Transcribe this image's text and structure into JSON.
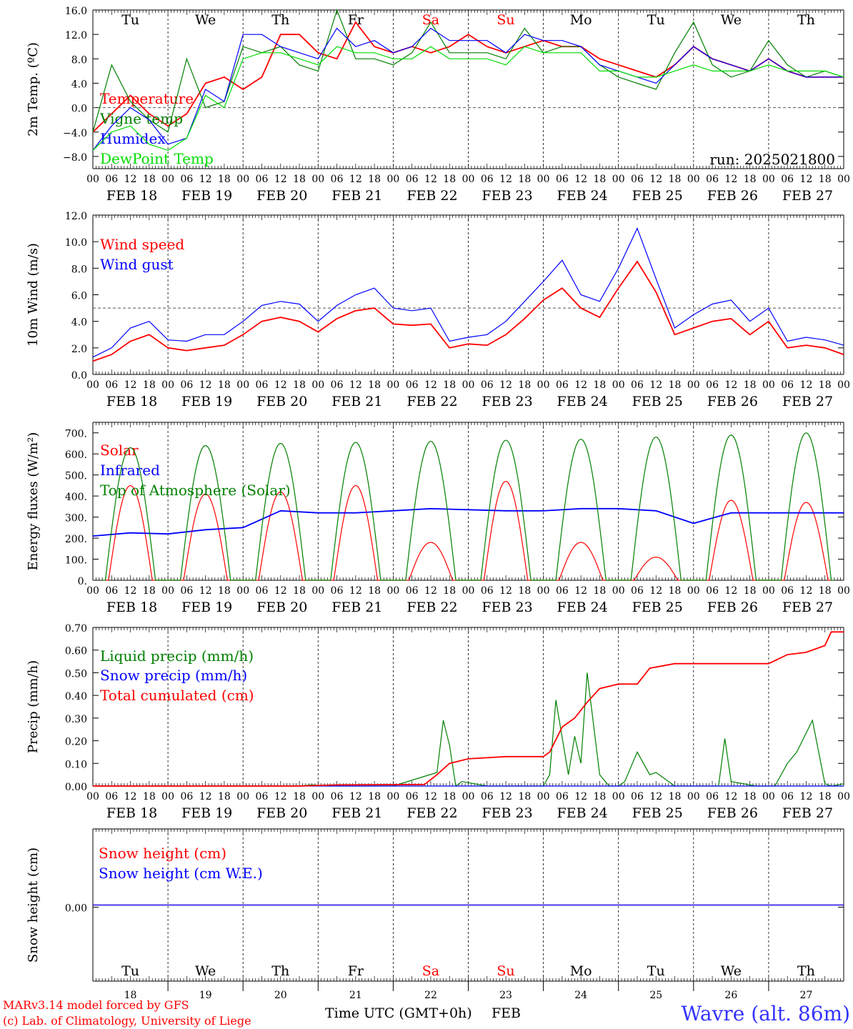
{
  "footer": {
    "model_line": "MARv3.14 model forced by GFS",
    "copyright_line": "(c) Lab. of Climatology, University of Liege",
    "xlabel": "Time UTC (GMT+0h)",
    "month": "FEB",
    "place": "Wavre (alt. 86m)"
  },
  "days": {
    "abbr": [
      "Tu",
      "We",
      "Th",
      "Fr",
      "Sa",
      "Su",
      "Mo",
      "Tu",
      "We",
      "Th"
    ],
    "dates": [
      "FEB 18",
      "FEB 19",
      "FEB 20",
      "FEB 21",
      "FEB 22",
      "FEB 23",
      "FEB 24",
      "FEB 25",
      "FEB 26",
      "FEB 27"
    ],
    "day_numbers": [
      "18",
      "19",
      "20",
      "21",
      "22",
      "23",
      "24",
      "25",
      "26",
      "27"
    ],
    "weekend_color": "#ff0000",
    "hour_ticks": [
      "00",
      "06",
      "12",
      "18"
    ],
    "final_tick": "00"
  },
  "chart_data": [
    {
      "type": "line",
      "ylabel": "2m Temp. (ºC)",
      "ylim": [
        -10,
        16
      ],
      "yticks": [
        "16.0",
        "12.0",
        "8.0",
        "4.0",
        "0.0",
        "−4.0",
        "−8.0"
      ],
      "ytick_values": [
        16,
        12,
        8,
        4,
        0,
        -4,
        -8
      ],
      "reference_line": 0,
      "annotation": "run: 2025021800",
      "x_unit": "hours since FEB 18 00 UTC",
      "x": [
        0,
        6,
        12,
        18,
        24,
        30,
        36,
        42,
        48,
        54,
        60,
        66,
        72,
        78,
        84,
        90,
        96,
        102,
        108,
        114,
        120,
        126,
        132,
        138,
        144,
        150,
        156,
        162,
        168,
        174,
        180,
        186,
        192,
        198,
        204,
        210,
        216,
        222,
        228,
        234,
        240
      ],
      "series": [
        {
          "name": "Temperature",
          "color": "#ff0000",
          "values": [
            -4,
            -1,
            2,
            -1,
            -3,
            -1,
            4,
            5,
            3,
            5,
            12,
            12,
            9,
            8,
            14,
            10,
            9,
            10,
            9,
            10,
            12,
            10,
            9,
            10,
            11,
            10,
            10,
            8,
            7,
            6,
            5,
            7,
            10,
            8,
            7,
            6,
            8,
            6,
            5,
            5,
            5
          ]
        },
        {
          "name": "Vigne temp",
          "color": "#008000",
          "values": [
            -4,
            7,
            1,
            -2,
            -4,
            8,
            0,
            1,
            10,
            9,
            10,
            7,
            6,
            16,
            8,
            8,
            7,
            9,
            14,
            9,
            9,
            9,
            8,
            13,
            9,
            10,
            10,
            7,
            5,
            4,
            3,
            9,
            14,
            7,
            5,
            6,
            11,
            7,
            5,
            6,
            5
          ]
        },
        {
          "name": "Humidex",
          "color": "#0000ff",
          "values": [
            -7,
            -3,
            0,
            -2,
            -6,
            -5,
            3,
            1,
            12,
            12,
            10,
            9,
            8,
            13,
            10,
            11,
            9,
            10,
            13,
            11,
            11,
            11,
            9,
            12,
            11,
            11,
            10,
            7,
            6,
            5,
            4,
            7,
            10,
            8,
            7,
            6,
            8,
            6,
            5,
            5,
            5
          ]
        },
        {
          "name": "DewPoint Temp",
          "color": "#00dd00",
          "values": [
            -7,
            -4,
            -3,
            -6,
            -7,
            -5,
            2,
            0,
            8,
            9,
            9,
            8,
            7,
            10,
            9,
            9,
            8,
            8,
            10,
            8,
            8,
            8,
            7,
            10,
            9,
            9,
            9,
            6,
            6,
            5,
            5,
            6,
            7,
            6,
            6,
            6,
            7,
            6,
            6,
            6,
            5
          ]
        }
      ]
    },
    {
      "type": "line",
      "ylabel": "10m Wind (m/s)",
      "ylim": [
        0,
        12
      ],
      "yticks": [
        "12.0",
        "10.0",
        "8.0",
        "6.0",
        "4.0",
        "2.0",
        "0.0"
      ],
      "ytick_values": [
        12,
        10,
        8,
        6,
        4,
        2,
        0
      ],
      "reference_line": 5,
      "x_unit": "hours since FEB 18 00 UTC",
      "x": [
        0,
        6,
        12,
        18,
        24,
        30,
        36,
        42,
        48,
        54,
        60,
        66,
        72,
        78,
        84,
        90,
        96,
        102,
        108,
        114,
        120,
        126,
        132,
        138,
        144,
        150,
        156,
        162,
        168,
        174,
        180,
        186,
        192,
        198,
        204,
        210,
        216,
        222,
        228,
        234,
        240
      ],
      "series": [
        {
          "name": "Wind speed",
          "color": "#ff0000",
          "values": [
            1,
            1.5,
            2.5,
            3,
            2,
            1.8,
            2,
            2.2,
            3,
            4,
            4.3,
            4,
            3.2,
            4.2,
            4.8,
            5,
            3.8,
            3.7,
            3.8,
            2,
            2.3,
            2.2,
            3,
            4.2,
            5.6,
            6.5,
            5,
            4.3,
            6.5,
            8.5,
            6.2,
            3,
            3.5,
            4,
            4.2,
            3,
            4,
            2,
            2.2,
            2,
            1.5
          ]
        },
        {
          "name": "Wind gust",
          "color": "#0000ff",
          "values": [
            1.3,
            2,
            3.5,
            4,
            2.6,
            2.5,
            3,
            3,
            4,
            5.2,
            5.5,
            5.3,
            4,
            5.2,
            6,
            6.5,
            5,
            4.8,
            5,
            2.5,
            2.8,
            3,
            4,
            5.5,
            7,
            8.6,
            6,
            5.5,
            8,
            11,
            7.2,
            3.5,
            4.5,
            5.3,
            5.6,
            4,
            5,
            2.5,
            2.8,
            2.6,
            2.2
          ]
        }
      ]
    },
    {
      "type": "line",
      "ylabel": "Energy fluxes (W/m²)",
      "ylim": [
        0,
        750
      ],
      "yticks": [
        "700.",
        "600.",
        "500.",
        "400.",
        "300.",
        "200.",
        "100.",
        "0."
      ],
      "ytick_values": [
        700,
        600,
        500,
        400,
        300,
        200,
        100,
        0
      ],
      "x_unit": "hours since FEB 18 00 UTC",
      "series": [
        {
          "name": "Solar",
          "color": "#ff0000",
          "peaks": [
            450,
            410,
            420,
            450,
            180,
            470,
            180,
            110,
            380,
            370
          ]
        },
        {
          "name": "Infrared",
          "color": "#0000ff",
          "x": [
            0,
            12,
            24,
            36,
            48,
            60,
            72,
            84,
            96,
            108,
            120,
            132,
            144,
            156,
            168,
            180,
            192,
            204,
            216,
            228,
            240
          ],
          "values": [
            210,
            225,
            220,
            240,
            250,
            330,
            320,
            320,
            330,
            340,
            335,
            330,
            330,
            340,
            340,
            330,
            270,
            320,
            320,
            320,
            320
          ]
        },
        {
          "name": "Top of Atmosphere (Solar)",
          "color": "#008000",
          "peaks": [
            630,
            640,
            650,
            655,
            660,
            665,
            670,
            680,
            690,
            700
          ]
        }
      ]
    },
    {
      "type": "line",
      "ylabel": "Precip (mm/h)",
      "ylim": [
        0,
        0.7
      ],
      "yticks": [
        "0.70",
        "0.60",
        "0.50",
        "0.40",
        "0.30",
        "0.20",
        "0.10",
        "0.00"
      ],
      "ytick_values": [
        0.7,
        0.6,
        0.5,
        0.4,
        0.3,
        0.2,
        0.1,
        0
      ],
      "x_unit": "hours since FEB 18 00 UTC",
      "series": [
        {
          "name": "Liquid precip (mm/h)",
          "color": "#008000",
          "x": [
            0,
            66,
            70,
            75,
            78,
            82,
            84,
            96,
            110,
            112,
            114,
            116,
            118,
            126,
            144,
            146,
            148,
            152,
            154,
            156,
            158,
            162,
            165,
            168,
            170,
            174,
            176,
            178,
            180,
            186,
            200,
            202,
            204,
            212,
            218,
            222,
            225,
            230,
            234,
            236,
            240
          ],
          "values": [
            0,
            0,
            0.005,
            0,
            0,
            0,
            0,
            0,
            0.06,
            0.29,
            0.18,
            0,
            0.02,
            0,
            0,
            0.05,
            0.38,
            0.05,
            0.22,
            0.1,
            0.5,
            0.05,
            0,
            0,
            0.02,
            0.15,
            0.1,
            0.05,
            0.06,
            0,
            0,
            0.21,
            0.02,
            0,
            0,
            0.1,
            0.15,
            0.29,
            0.01,
            0,
            0.01
          ]
        },
        {
          "name": "Snow precip (mm/h)",
          "color": "#0000ff",
          "x": [
            0,
            240
          ],
          "values": [
            0,
            0
          ]
        },
        {
          "name": "Total cumulated (cm)",
          "color": "#ff0000",
          "x": [
            0,
            66,
            78,
            106,
            110,
            114,
            120,
            132,
            144,
            146,
            150,
            154,
            158,
            162,
            168,
            174,
            178,
            186,
            192,
            198,
            210,
            216,
            222,
            228,
            234,
            236,
            240
          ],
          "values": [
            0,
            0,
            0.005,
            0.007,
            0.05,
            0.1,
            0.12,
            0.13,
            0.13,
            0.15,
            0.26,
            0.3,
            0.37,
            0.43,
            0.45,
            0.45,
            0.52,
            0.54,
            0.54,
            0.54,
            0.54,
            0.54,
            0.58,
            0.59,
            0.62,
            0.68,
            0.68
          ]
        }
      ]
    },
    {
      "type": "line",
      "ylabel": "Snow height (cm)",
      "yticks": [
        "0.00"
      ],
      "ytick_values": [
        0
      ],
      "x_unit": "hours since FEB 18 00 UTC",
      "series": [
        {
          "name": "Snow height (cm)",
          "color": "#ff0000",
          "x": [
            0,
            240
          ],
          "values": [
            0,
            0
          ]
        },
        {
          "name": "Snow height (cm W.E.)",
          "color": "#0000ff",
          "x": [
            0,
            240
          ],
          "values": [
            0,
            0
          ]
        }
      ]
    }
  ]
}
